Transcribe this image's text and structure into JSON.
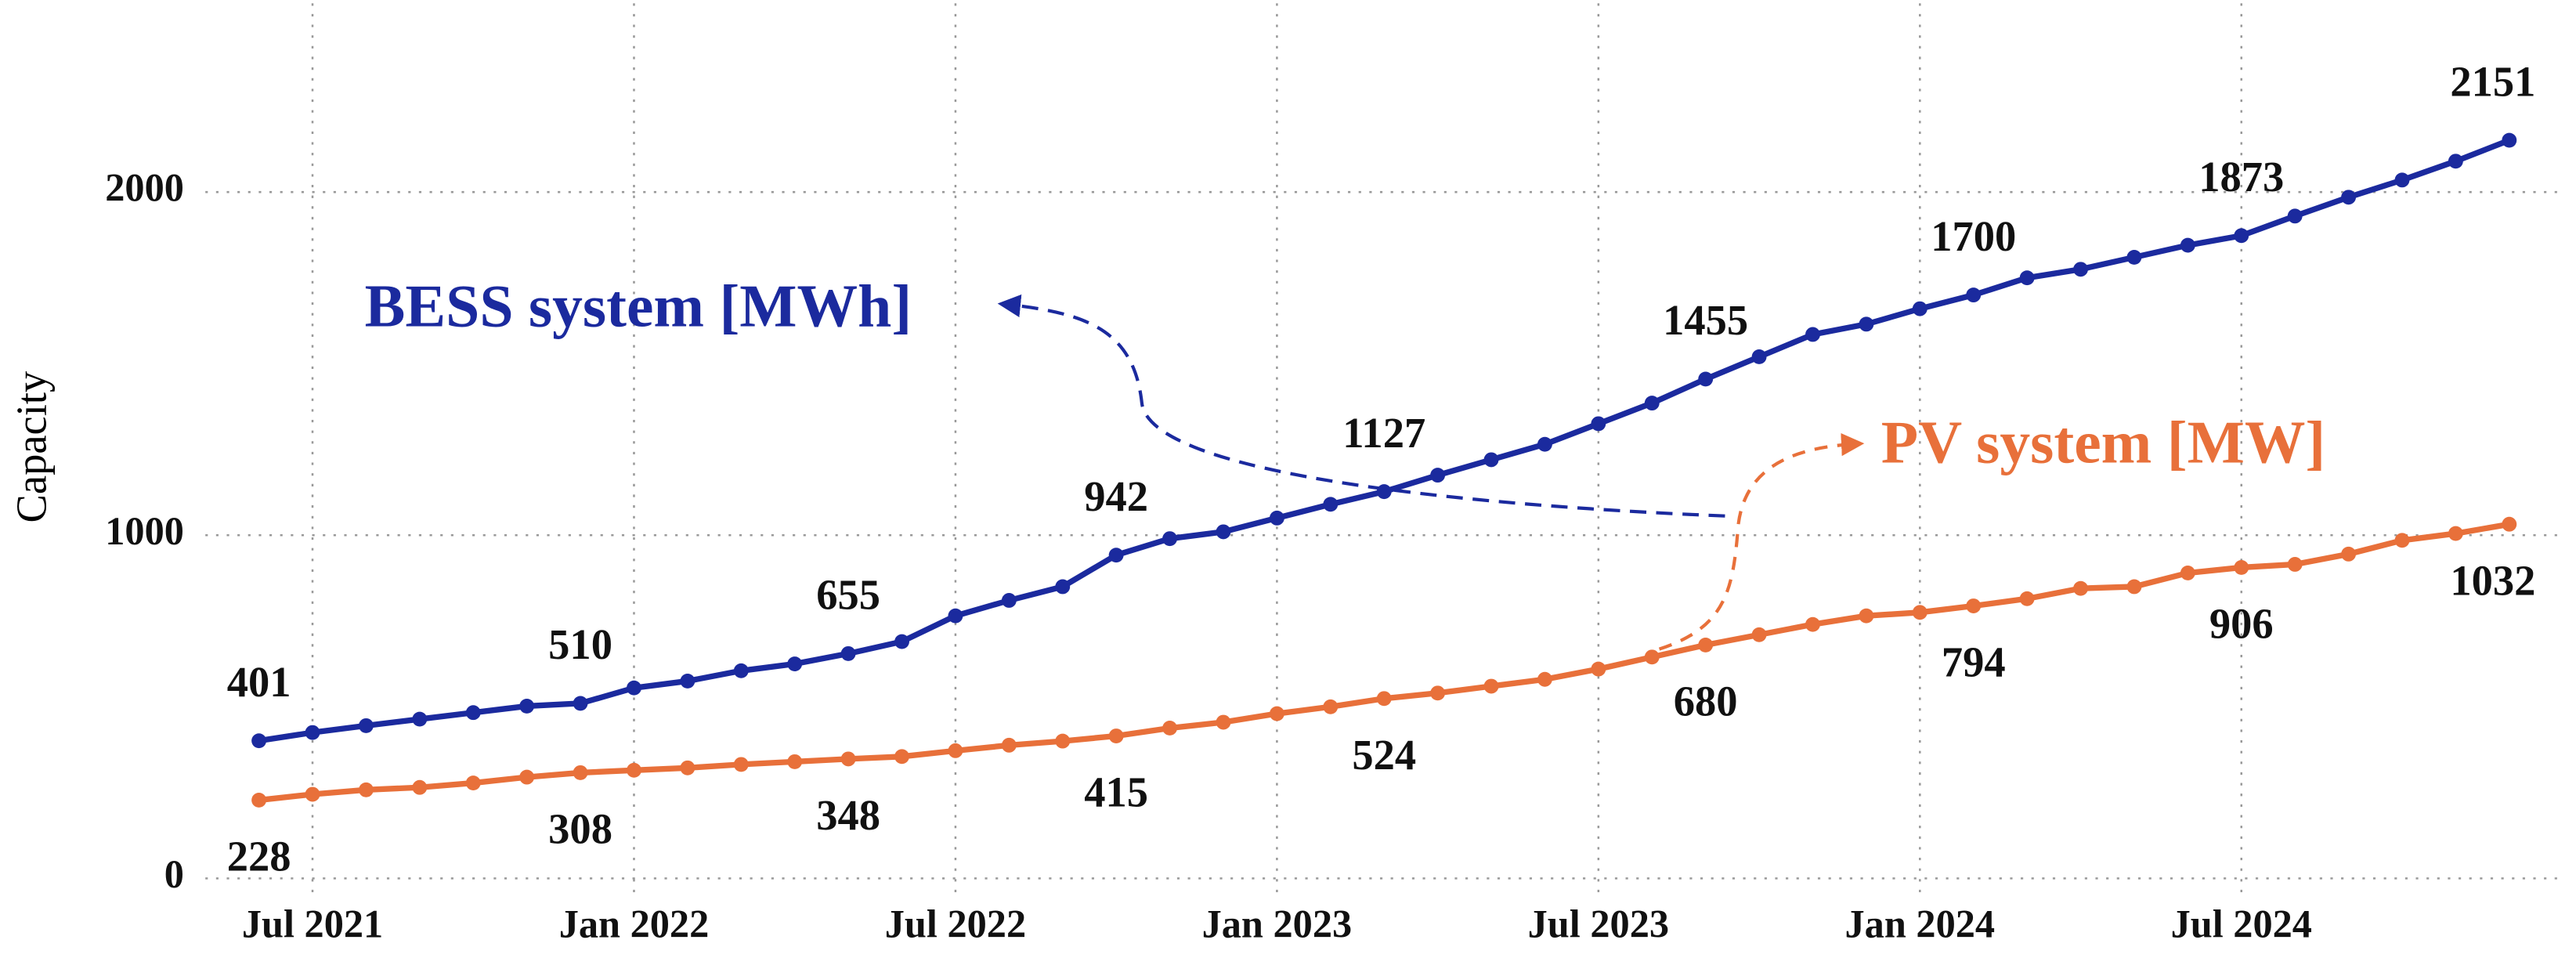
{
  "chart_data": {
    "type": "line",
    "ylabel": "Capacity",
    "x": [
      "2021-06",
      "2021-07",
      "2021-08",
      "2021-09",
      "2021-10",
      "2021-11",
      "2021-12",
      "2022-01",
      "2022-02",
      "2022-03",
      "2022-04",
      "2022-05",
      "2022-06",
      "2022-07",
      "2022-08",
      "2022-09",
      "2022-10",
      "2022-11",
      "2022-12",
      "2023-01",
      "2023-02",
      "2023-03",
      "2023-04",
      "2023-05",
      "2023-06",
      "2023-07",
      "2023-08",
      "2023-09",
      "2023-10",
      "2023-11",
      "2023-12",
      "2024-01",
      "2024-02",
      "2024-03",
      "2024-04",
      "2024-05",
      "2024-06",
      "2024-07",
      "2024-08",
      "2024-09",
      "2024-10",
      "2024-11",
      "2024-12"
    ],
    "series": [
      {
        "name": "BESS system [MWh]",
        "color": "#1b2a9e",
        "values": [
          401,
          425,
          445,
          464,
          483,
          502,
          510,
          555,
          575,
          605,
          625,
          655,
          690,
          765,
          810,
          850,
          942,
          990,
          1010,
          1050,
          1090,
          1127,
          1175,
          1220,
          1265,
          1325,
          1385,
          1455,
          1520,
          1585,
          1615,
          1660,
          1700,
          1750,
          1775,
          1810,
          1845,
          1873,
          1930,
          1985,
          2035,
          2090,
          2151
        ],
        "value_labels": [
          "401",
          null,
          null,
          null,
          null,
          null,
          "510",
          null,
          null,
          null,
          null,
          "655",
          null,
          null,
          null,
          null,
          "942",
          null,
          null,
          null,
          null,
          "1127",
          null,
          null,
          null,
          null,
          null,
          "1455",
          null,
          null,
          null,
          null,
          "1700",
          null,
          null,
          null,
          null,
          "1873",
          null,
          null,
          null,
          null,
          "2151"
        ]
      },
      {
        "name": "PV system [MW]",
        "color": "#e8703a",
        "values": [
          228,
          245,
          258,
          265,
          278,
          295,
          308,
          315,
          322,
          332,
          340,
          348,
          355,
          372,
          388,
          400,
          415,
          438,
          455,
          480,
          500,
          524,
          540,
          560,
          580,
          610,
          645,
          680,
          710,
          740,
          765,
          775,
          794,
          815,
          845,
          850,
          890,
          906,
          915,
          945,
          985,
          1005,
          1032
        ],
        "value_labels": [
          "228",
          null,
          null,
          null,
          null,
          null,
          "308",
          null,
          null,
          null,
          null,
          "348",
          null,
          null,
          null,
          null,
          "415",
          null,
          null,
          null,
          null,
          "524",
          null,
          null,
          null,
          null,
          null,
          "680",
          null,
          null,
          null,
          null,
          "794",
          null,
          null,
          null,
          null,
          "906",
          null,
          null,
          null,
          null,
          "1032"
        ]
      }
    ],
    "xlim": [
      "2021-05",
      "2025-01"
    ],
    "xticks": [
      {
        "value": "2021-07",
        "label": "Jul 2021"
      },
      {
        "value": "2022-01",
        "label": "Jan 2022"
      },
      {
        "value": "2022-07",
        "label": "Jul 2022"
      },
      {
        "value": "2023-01",
        "label": "Jan 2023"
      },
      {
        "value": "2023-07",
        "label": "Jul 2023"
      },
      {
        "value": "2024-01",
        "label": "Jan 2024"
      },
      {
        "value": "2024-07",
        "label": "Jul 2024"
      }
    ],
    "ylim": [
      -50,
      2550
    ],
    "yticks": [
      0,
      1000,
      2000
    ],
    "grid": true
  }
}
